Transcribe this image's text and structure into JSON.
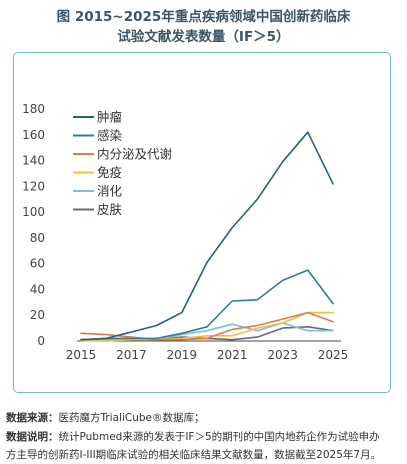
{
  "title": {
    "line1": "图 2015~2025年重点疾病领域中国创新药临床",
    "line2": "试验文献发表数量（IF＞5）"
  },
  "footnote": {
    "source_label": "数据来源：",
    "source_text": "医药魔方TrialiCube®数据库；",
    "desc_label": "数据说明：",
    "desc_text": "统计Pubmed来源的发表于IF＞5的期刊的中国内地药企作为试验申办",
    "desc_text2": "方主导的创新药I-III期临床试验的相关临床结果文献数量，数据截至2025年7月。"
  },
  "chart_data": {
    "type": "line",
    "title": "",
    "xlabel": "",
    "ylabel": "",
    "x": [
      2015,
      2016,
      2017,
      2018,
      2019,
      2020,
      2021,
      2022,
      2023,
      2024,
      2025
    ],
    "x_ticks": [
      2015,
      2017,
      2019,
      2021,
      2023,
      2025
    ],
    "ylim": [
      0,
      180
    ],
    "y_ticks": [
      0,
      20,
      40,
      60,
      80,
      100,
      120,
      140,
      160,
      180
    ],
    "grid": false,
    "legend_position": "top-left",
    "series": [
      {
        "name": "肿瘤",
        "color": "#2c5f7a",
        "values": [
          1,
          2,
          7,
          12,
          22,
          61,
          88,
          110,
          139,
          162,
          122
        ]
      },
      {
        "name": "感染",
        "color": "#2e7f93",
        "values": [
          1,
          2,
          2,
          2,
          6,
          11,
          31,
          32,
          47,
          55,
          29
        ]
      },
      {
        "name": "内分泌及代谢",
        "color": "#e07a4a",
        "values": [
          6,
          5,
          3,
          1,
          1,
          2,
          9,
          12,
          17,
          22,
          15
        ]
      },
      {
        "name": "免疫",
        "color": "#f0c23c",
        "values": [
          0,
          0,
          1,
          1,
          2,
          4,
          4,
          10,
          14,
          22,
          22
        ]
      },
      {
        "name": "消化",
        "color": "#7fbde3",
        "values": [
          0,
          1,
          1,
          1,
          5,
          8,
          13,
          8,
          14,
          8,
          8
        ]
      },
      {
        "name": "皮肤",
        "color": "#6e6580",
        "values": [
          1,
          1,
          1,
          1,
          3,
          2,
          1,
          3,
          10,
          11,
          8
        ]
      }
    ]
  }
}
